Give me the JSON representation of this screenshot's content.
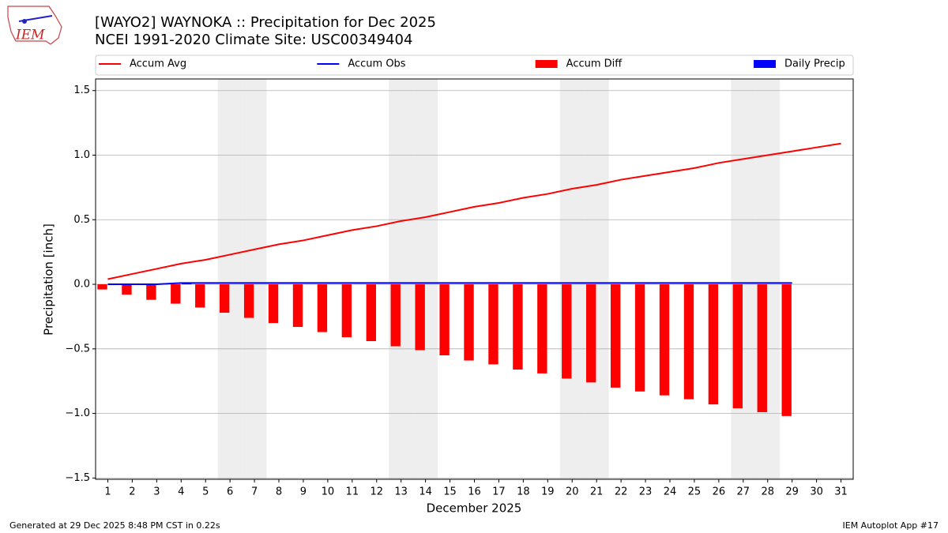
{
  "chart_data": {
    "type": "bar_line",
    "title": "[WAYO2] WAYNOKA :: Precipitation for Dec 2025",
    "subtitle": "NCEI 1991-2020 Climate Site: USC00349404",
    "xlabel": "December 2025",
    "ylabel": "Precipitation [inch]",
    "logo_text": "IEM",
    "footer_left": "Generated at 29 Dec 2025 8:48 PM CST in 0.22s",
    "footer_right": "IEM Autoplot App #17",
    "x": [
      1,
      2,
      3,
      4,
      5,
      6,
      7,
      8,
      9,
      10,
      11,
      12,
      13,
      14,
      15,
      16,
      17,
      18,
      19,
      20,
      21,
      22,
      23,
      24,
      25,
      26,
      27,
      28,
      29,
      30,
      31
    ],
    "xlim": [
      0.5,
      31.5
    ],
    "xticks": [
      1,
      2,
      3,
      4,
      5,
      6,
      7,
      8,
      9,
      10,
      11,
      12,
      13,
      14,
      15,
      16,
      17,
      18,
      19,
      20,
      21,
      22,
      23,
      24,
      25,
      26,
      27,
      28,
      29,
      30,
      31
    ],
    "ylim": [
      -1.51,
      1.59
    ],
    "yticks": [
      {
        "value": -1.5,
        "label": "−1.5"
      },
      {
        "value": -1.0,
        "label": "−1.0"
      },
      {
        "value": -0.5,
        "label": "−0.5"
      },
      {
        "value": 0,
        "label": "0.0"
      },
      {
        "value": 0.5,
        "label": "0.5"
      },
      {
        "value": 1.0,
        "label": "1.0"
      },
      {
        "value": 1.5,
        "label": "1.5"
      }
    ],
    "grid": true,
    "legend": "top",
    "shaded_days": [
      6,
      7,
      13,
      14,
      20,
      21,
      27,
      28
    ],
    "shade_color": "#eeeeee",
    "series": [
      {
        "name": "Accum Avg",
        "kind": "line",
        "color": "#ff0000",
        "values": [
          0.04,
          0.08,
          0.12,
          0.16,
          0.19,
          0.23,
          0.27,
          0.31,
          0.34,
          0.38,
          0.42,
          0.45,
          0.49,
          0.52,
          0.56,
          0.6,
          0.63,
          0.67,
          0.7,
          0.74,
          0.77,
          0.81,
          0.84,
          0.87,
          0.9,
          0.94,
          0.97,
          1.0,
          1.03,
          1.06,
          1.09
        ]
      },
      {
        "name": "Accum Obs",
        "kind": "line",
        "color": "#0000ff",
        "values": [
          0,
          0,
          0,
          0.01,
          0.01,
          0.01,
          0.01,
          0.01,
          0.01,
          0.01,
          0.01,
          0.01,
          0.01,
          0.01,
          0.01,
          0.01,
          0.01,
          0.01,
          0.01,
          0.01,
          0.01,
          0.01,
          0.01,
          0.01,
          0.01,
          0.01,
          0.01,
          0.01,
          0.01,
          null,
          null
        ]
      },
      {
        "name": "Accum Diff",
        "kind": "bar",
        "color": "#ff0000",
        "values": [
          -0.04,
          -0.08,
          -0.12,
          -0.15,
          -0.18,
          -0.22,
          -0.26,
          -0.3,
          -0.33,
          -0.37,
          -0.41,
          -0.44,
          -0.48,
          -0.51,
          -0.55,
          -0.59,
          -0.62,
          -0.66,
          -0.69,
          -0.73,
          -0.76,
          -0.8,
          -0.83,
          -0.86,
          -0.89,
          -0.93,
          -0.96,
          -0.99,
          -1.02,
          null,
          null
        ]
      },
      {
        "name": "Daily Precip",
        "kind": "bar",
        "color": "#0000ff",
        "values": [
          0,
          0,
          0,
          0.01,
          0,
          0,
          0,
          0,
          0,
          0,
          0,
          0,
          0,
          0,
          0,
          0,
          0,
          0,
          0,
          0,
          0,
          0,
          0,
          0,
          0,
          0,
          0,
          0,
          0,
          null,
          null
        ]
      }
    ]
  }
}
